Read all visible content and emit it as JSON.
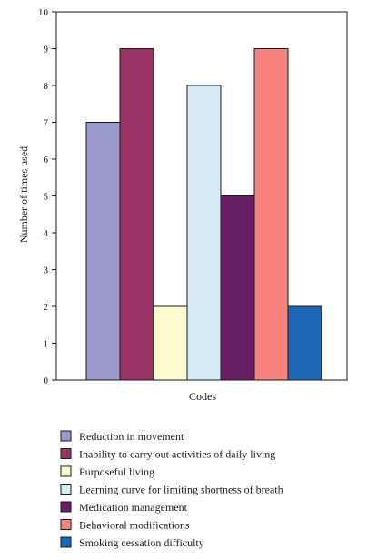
{
  "chart_data": {
    "type": "bar",
    "categories": [
      "Reduction in movement",
      "Inability to carry out activities of daily living",
      "Purposeful living",
      "Learning curve for limiting shortness of breath",
      "Medication management",
      "Behavioral modifications",
      "Smoking cessation difficulty"
    ],
    "values": [
      7,
      9,
      2,
      8,
      5,
      9,
      2
    ],
    "colors": [
      "#9a99cc",
      "#993366",
      "#fdfcd0",
      "#d4ebf3",
      "#661f63",
      "#f7837f",
      "#1f65b6"
    ],
    "xlabel": "Codes",
    "ylabel": "Number of times used",
    "ylim": [
      0,
      10
    ],
    "yticks": [
      0,
      1,
      2,
      3,
      4,
      5,
      6,
      7,
      8,
      9,
      10
    ],
    "grid": false,
    "legend_position": "bottom"
  }
}
